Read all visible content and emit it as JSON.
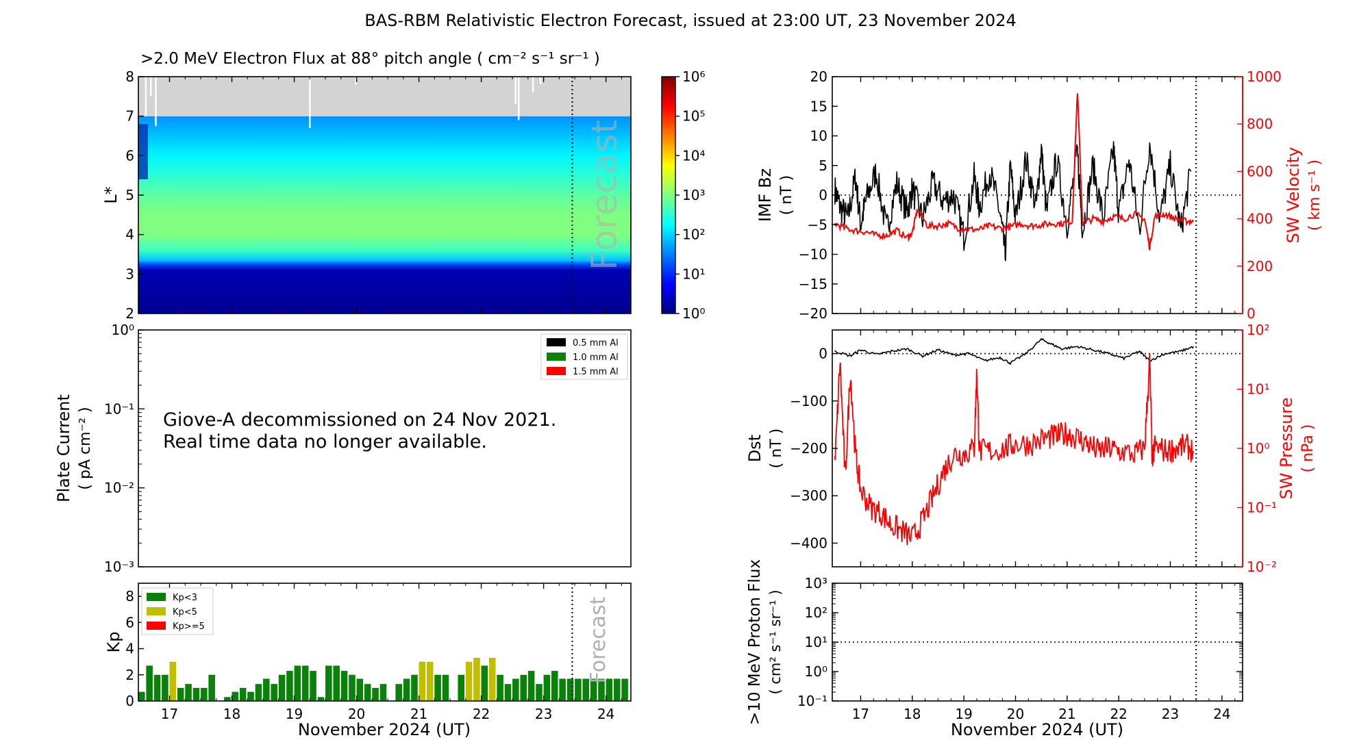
{
  "figure": {
    "title": "BAS-RBM Relativistic Electron Forecast, issued at 23:00 UT, 23 November 2024"
  },
  "colors": {
    "black": "#000000",
    "red": "#ff0000",
    "kp_low": "#0a820a",
    "kp_mid": "#bfbf00",
    "kp_high": "#ff0000",
    "gray_region": "#d3d3d3",
    "forecast_text": "#b0b0b0"
  },
  "chart_data": [
    {
      "id": "electron_flux",
      "type": "heatmap",
      "title": ">2.0 MeV Electron Flux at 88° pitch angle ( cm⁻² s⁻¹ sr⁻¹ )",
      "ylabel": "L*",
      "xlim": [
        16.5,
        24.4
      ],
      "ylim": [
        2,
        8
      ],
      "yticks": [
        2,
        3,
        4,
        5,
        6,
        7,
        8
      ],
      "forecast_x": 23.46,
      "forecast_label": "Forecast",
      "gray_above_L": 7,
      "colorbar": {
        "scale": "log",
        "range": [
          1,
          1000000
        ],
        "tick_labels": [
          "10⁰",
          "10¹",
          "10²",
          "10³",
          "10⁴",
          "10⁵",
          "10⁶"
        ]
      },
      "profile": {
        "L": [
          2,
          3.1,
          3.25,
          3.35,
          3.6,
          4.0,
          4.5,
          5.0,
          5.5,
          6.0,
          6.5,
          7.0
        ],
        "log_flux": [
          0.1,
          0.3,
          1.2,
          1.9,
          2.6,
          3.0,
          3.0,
          2.8,
          2.5,
          2.2,
          1.9,
          1.6
        ]
      }
    },
    {
      "id": "plate_current",
      "type": "line",
      "ylabel": "Plate Current",
      "yunit": "( pA cm⁻² )",
      "yscale": "log",
      "ylim": [
        0.001,
        1
      ],
      "ytick_labels": [
        "10⁻³",
        "10⁻²",
        "10⁻¹",
        "10⁰"
      ],
      "xlim": [
        16.5,
        24.4
      ],
      "legend": [
        "0.5 mm Al",
        "1.0 mm Al",
        "1.5 mm Al"
      ],
      "legend_position": "top-right",
      "annotation": [
        "Giove-A decommissioned on 24 Nov 2021.",
        "Real time data no longer available."
      ]
    },
    {
      "id": "kp",
      "type": "bar",
      "ylabel": "Kp",
      "ylim": [
        0,
        9
      ],
      "yticks": [
        0,
        2,
        4,
        6,
        8
      ],
      "xlim": [
        16.5,
        24.4
      ],
      "xlabel": "November 2024 (UT)",
      "xtick_labels": [
        "17",
        "18",
        "19",
        "20",
        "21",
        "22",
        "23",
        "24"
      ],
      "forecast_x": 23.46,
      "forecast_label": "Forecast",
      "legend": [
        "Kp<3",
        "Kp<5",
        "Kp>=5"
      ],
      "legend_position": "top-left",
      "bar_width_days": 0.105,
      "start_x": 16.5,
      "step_days": 0.125,
      "values": [
        0.7,
        2.7,
        2.0,
        2.0,
        3.0,
        1.0,
        1.3,
        1.0,
        1.0,
        2.0,
        0,
        0.3,
        0.7,
        1.0,
        0.7,
        1.3,
        1.7,
        1.3,
        2.0,
        2.3,
        2.7,
        2.7,
        2.3,
        0.3,
        2.7,
        2.7,
        2.3,
        2.0,
        1.7,
        1.3,
        1.0,
        1.3,
        0,
        1.3,
        1.7,
        2.0,
        3.0,
        3.0,
        2.0,
        2.0,
        0,
        2.0,
        3.0,
        3.3,
        2.7,
        3.3,
        2.0,
        1.3,
        1.7,
        2.0,
        2.3,
        1.3,
        2.0,
        2.3,
        1.7,
        1.7,
        1.7,
        1.7,
        1.7,
        1.7,
        1.7,
        1.7,
        1.7
      ]
    },
    {
      "id": "imf_sw_velocity",
      "type": "line",
      "ylabel": "IMF Bz",
      "yunit": "( nT )",
      "ylim": [
        -20,
        20
      ],
      "yticks": [
        -20,
        -15,
        -10,
        -5,
        0,
        5,
        10,
        15,
        20
      ],
      "ylabel_right": "SW Velocity",
      "yunit_right": "( km s⁻¹ )",
      "ylim_right": [
        0,
        1000
      ],
      "yticks_right": [
        0,
        200,
        400,
        600,
        800,
        1000
      ],
      "xlim": [
        16.45,
        24.4
      ],
      "forecast_x": 23.5,
      "series": [
        {
          "axis": "left",
          "x": [
            16.5,
            16.6,
            16.75,
            16.9,
            17.0,
            17.1,
            17.3,
            17.5,
            17.7,
            17.9,
            18.0,
            18.2,
            18.4,
            18.6,
            18.8,
            19.0,
            19.2,
            19.3,
            19.5,
            19.7,
            19.8,
            19.9,
            20.0,
            20.2,
            20.4,
            20.5,
            20.6,
            20.8,
            21.0,
            21.2,
            21.3,
            21.5,
            21.7,
            21.9,
            22.0,
            22.2,
            22.4,
            22.6,
            22.8,
            23.0,
            23.2,
            23.4
          ],
          "y": [
            1,
            -2,
            -4,
            3,
            -5,
            -1,
            4,
            -6,
            2,
            -3,
            1,
            -4,
            2,
            -1,
            0,
            -7,
            3,
            -2,
            4,
            -3,
            -10,
            5,
            -4,
            6,
            -2,
            8,
            -3,
            6,
            -5,
            7,
            -6,
            5,
            -4,
            8,
            -3,
            6,
            -6,
            9,
            -4,
            5,
            -6,
            4
          ]
        },
        {
          "axis": "right",
          "x": [
            16.5,
            16.7,
            16.9,
            17.1,
            17.3,
            17.5,
            17.7,
            17.9,
            18.0,
            18.1,
            18.3,
            18.5,
            18.7,
            18.9,
            19.1,
            19.3,
            19.5,
            19.7,
            19.9,
            20.1,
            20.3,
            20.5,
            20.7,
            20.9,
            21.1,
            21.2,
            21.3,
            21.5,
            21.7,
            21.9,
            22.1,
            22.3,
            22.5,
            22.6,
            22.7,
            22.9,
            23.1,
            23.3,
            23.45
          ],
          "y": [
            380,
            360,
            350,
            345,
            330,
            330,
            350,
            320,
            340,
            440,
            370,
            370,
            380,
            360,
            355,
            355,
            370,
            360,
            365,
            380,
            370,
            375,
            380,
            380,
            390,
            940,
            380,
            400,
            390,
            410,
            400,
            420,
            400,
            280,
            410,
            420,
            400,
            390,
            390
          ]
        }
      ]
    },
    {
      "id": "dst_sw_pressure",
      "type": "line",
      "ylabel": "Dst",
      "yunit": "( nT )",
      "ylim": [
        -450,
        50
      ],
      "yticks": [
        -400,
        -300,
        -200,
        -100,
        0
      ],
      "ytick_labels": [
        "−400",
        "−300",
        "−200",
        "−100",
        "0"
      ],
      "ylabel_right": "SW Pressure",
      "yunit_right": "( nPa )",
      "yscale_right": "log",
      "ylim_right": [
        0.01,
        100
      ],
      "ytick_labels_right": [
        "10⁻²",
        "10⁻¹",
        "10⁰",
        "10¹",
        "10²"
      ],
      "xlim": [
        16.45,
        24.4
      ],
      "forecast_x": 23.5,
      "series": [
        {
          "axis": "left",
          "x": [
            16.5,
            16.8,
            17.0,
            17.3,
            17.6,
            17.9,
            18.2,
            18.5,
            18.8,
            19.1,
            19.4,
            19.7,
            19.9,
            20.2,
            20.5,
            20.7,
            20.9,
            21.2,
            21.5,
            21.8,
            22.1,
            22.4,
            22.6,
            22.9,
            23.2,
            23.45
          ],
          "y": [
            5,
            -5,
            8,
            -2,
            5,
            10,
            -5,
            8,
            -3,
            0,
            -15,
            -8,
            -20,
            0,
            30,
            20,
            10,
            15,
            8,
            0,
            -10,
            5,
            -15,
            0,
            5,
            15
          ]
        },
        {
          "axis": "right",
          "x": [
            16.5,
            16.6,
            16.7,
            16.8,
            16.9,
            17.0,
            17.2,
            17.4,
            17.6,
            17.8,
            18.0,
            18.2,
            18.4,
            18.6,
            18.8,
            19.0,
            19.2,
            19.25,
            19.3,
            19.5,
            19.8,
            20.0,
            20.3,
            20.6,
            20.8,
            21.0,
            21.2,
            21.4,
            21.6,
            21.8,
            22.0,
            22.3,
            22.5,
            22.6,
            22.65,
            22.7,
            22.9,
            23.1,
            23.3,
            23.45
          ],
          "y": [
            0.5,
            30,
            0.3,
            20,
            0.8,
            0.2,
            0.1,
            0.08,
            0.05,
            0.04,
            0.03,
            0.06,
            0.15,
            0.4,
            0.8,
            0.8,
            1.0,
            20,
            0.9,
            0.9,
            1.0,
            1.2,
            1.2,
            1.5,
            1.6,
            1.8,
            1.5,
            1.2,
            0.9,
            1.0,
            0.9,
            0.8,
            1.0,
            30,
            0.6,
            1.1,
            0.9,
            1.0,
            1.1,
            0.9
          ]
        }
      ]
    },
    {
      "id": "proton_flux",
      "type": "line",
      "ylabel": ">10 MeV Proton Flux",
      "yunit": "( cm² s⁻¹ sr⁻¹ )",
      "yscale": "log",
      "ylim": [
        0.1,
        1000
      ],
      "ytick_labels": [
        "10⁻¹",
        "10⁰",
        "10¹",
        "10²",
        "10³"
      ],
      "threshold": 10,
      "xlim": [
        16.45,
        24.4
      ],
      "forecast_x": 23.5,
      "xlabel": "November 2024 (UT)",
      "xtick_labels": [
        "17",
        "18",
        "19",
        "20",
        "21",
        "22",
        "23",
        "24"
      ]
    }
  ]
}
